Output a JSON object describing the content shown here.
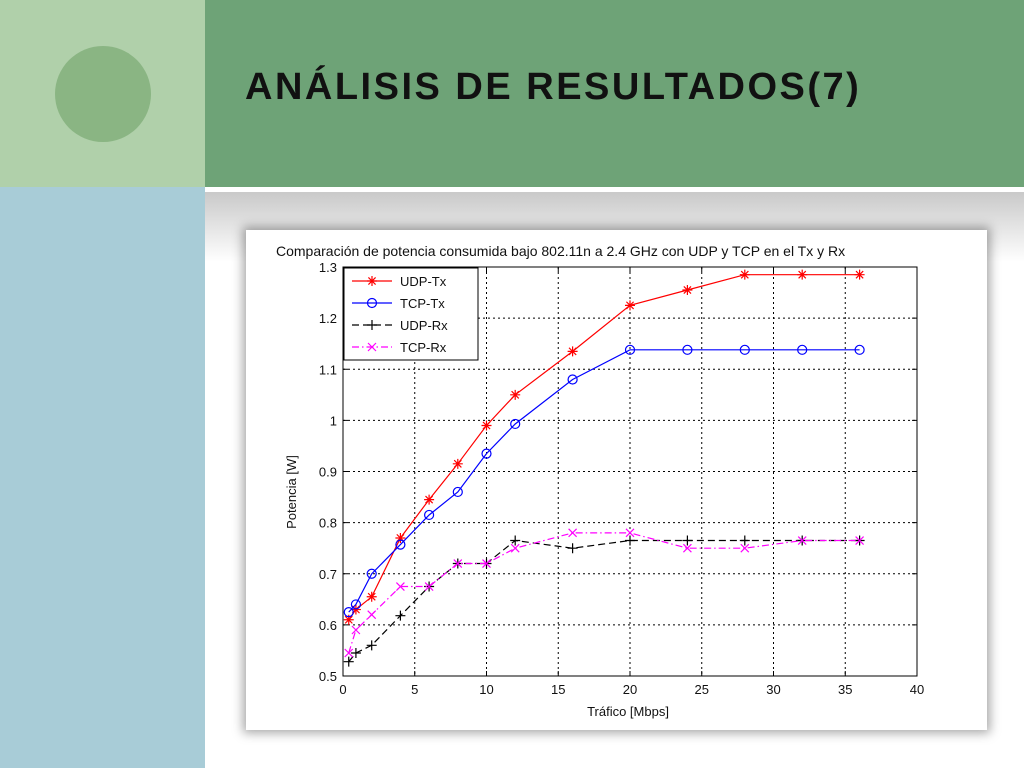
{
  "slide": {
    "title": "ANÁLISIS DE RESULTADOS(7)"
  },
  "colors": {
    "header_green": "#6ea377",
    "left_top_green": "#b0d0aa",
    "circle_green": "#8ab583",
    "left_bottom_blue": "#a8ccd7"
  },
  "chart_data": {
    "type": "line",
    "title": "Comparación de potencia consumida bajo 802.11n a 2.4 GHz con UDP y TCP en el Tx y Rx",
    "xlabel": "Tráfico [Mbps]",
    "ylabel": "Potencia [W]",
    "xlim": [
      0,
      40
    ],
    "ylim": [
      0.5,
      1.3
    ],
    "xticks": [
      0,
      5,
      10,
      15,
      20,
      25,
      30,
      35,
      40
    ],
    "yticks": [
      0.5,
      0.6,
      0.7,
      0.8,
      0.9,
      1,
      1.1,
      1.2,
      1.3
    ],
    "grid": true,
    "legend_position": "top-left",
    "series": [
      {
        "name": "UDP-Tx",
        "color": "#ff0000",
        "marker": "asterisk",
        "dash": "solid",
        "x": [
          0.4,
          0.9,
          2,
          4,
          6,
          8,
          10,
          12,
          16,
          20,
          24,
          28,
          32,
          36
        ],
        "y": [
          0.61,
          0.63,
          0.655,
          0.77,
          0.845,
          0.915,
          0.99,
          1.05,
          1.135,
          1.225,
          1.255,
          1.285,
          1.285,
          1.285
        ]
      },
      {
        "name": "TCP-Tx",
        "color": "#0000ff",
        "marker": "circle",
        "dash": "solid",
        "x": [
          0.4,
          0.9,
          2,
          4,
          6,
          8,
          10,
          12,
          16,
          20,
          24,
          28,
          32,
          36
        ],
        "y": [
          0.625,
          0.64,
          0.7,
          0.757,
          0.815,
          0.86,
          0.935,
          0.993,
          1.08,
          1.138,
          1.138,
          1.138,
          1.138,
          1.138
        ]
      },
      {
        "name": "UDP-Rx",
        "color": "#000000",
        "marker": "plus",
        "dash": "dashed",
        "x": [
          0.4,
          0.9,
          2,
          4,
          6,
          8,
          10,
          12,
          16,
          20,
          24,
          28,
          32,
          36
        ],
        "y": [
          0.528,
          0.545,
          0.56,
          0.618,
          0.675,
          0.72,
          0.72,
          0.765,
          0.75,
          0.765,
          0.765,
          0.765,
          0.765,
          0.765
        ]
      },
      {
        "name": "TCP-Rx",
        "color": "#ff00ff",
        "marker": "x",
        "dash": "dashdot",
        "x": [
          0.4,
          0.9,
          2,
          4,
          6,
          8,
          10,
          12,
          16,
          20,
          24,
          28,
          32,
          36
        ],
        "y": [
          0.545,
          0.59,
          0.62,
          0.675,
          0.675,
          0.72,
          0.72,
          0.75,
          0.78,
          0.78,
          0.75,
          0.75,
          0.765,
          0.765
        ]
      }
    ]
  }
}
